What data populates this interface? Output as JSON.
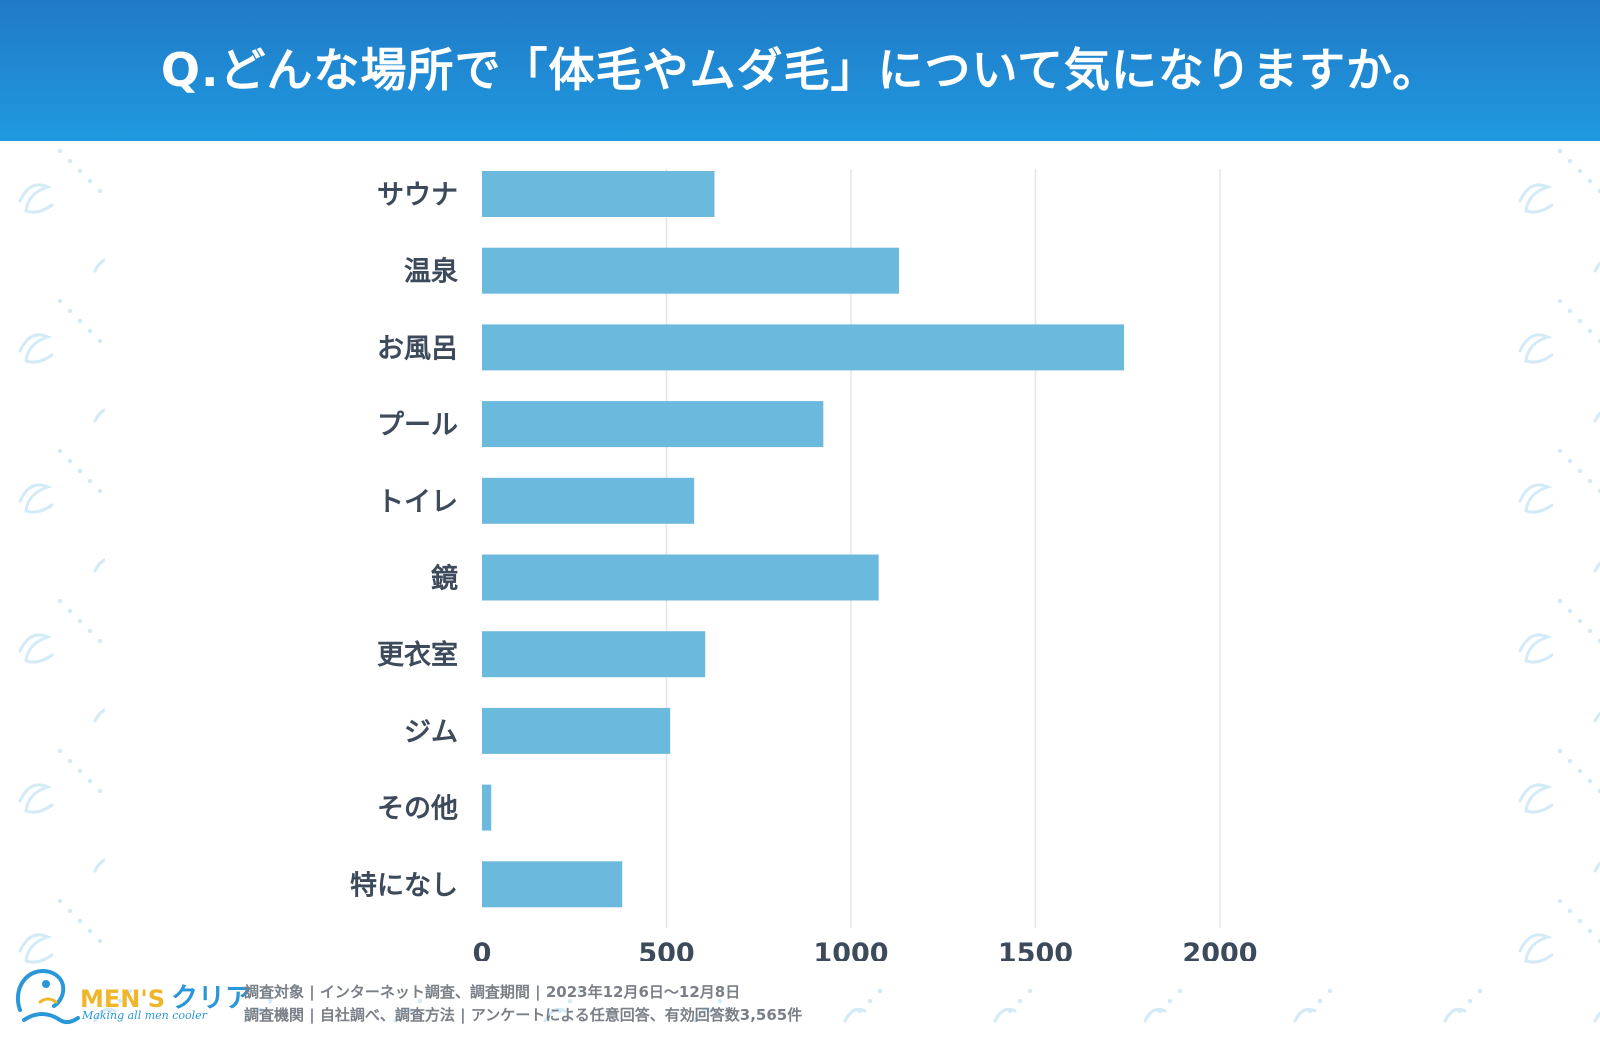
{
  "header": {
    "title": "Q.どんな場所で「体毛やムダ毛」について気になりますか。"
  },
  "chart_data": {
    "type": "bar",
    "orientation": "horizontal",
    "title": "Q.どんな場所で「体毛やムダ毛」について気になりますか。",
    "categories": [
      "サウナ",
      "温泉",
      "お風呂",
      "プール",
      "トイレ",
      "鏡",
      "更衣室",
      "ジム",
      "その他",
      "特になし"
    ],
    "values": [
      630,
      1130,
      1740,
      925,
      575,
      1075,
      605,
      510,
      25,
      380
    ],
    "xlim": [
      0,
      2000
    ],
    "x_ticks": [
      0,
      500,
      1000,
      1500,
      2000
    ],
    "x_tick_labels": [
      "0",
      "500",
      "1000",
      "1500",
      "2000"
    ],
    "xlabel": "",
    "ylabel": "",
    "grid": true,
    "bar_color": "#6cb9de",
    "grid_color": "#e3e5e8",
    "label_color": "#3d4a5c"
  },
  "footer": {
    "brand_latin": "MEN'S",
    "brand_kana": "クリア",
    "tagline": "Making all men cooler",
    "line1": "調査対象 | インターネット調査、調査期間 | 2023年12月6日〜12月8日",
    "line2": "調査機関 | 自社調べ、調査方法 | アンケートによる任意回答、有効回答数3,565件"
  },
  "colors": {
    "header_top": "#2079c6",
    "header_bottom": "#1f9ae0",
    "pattern": "#cfe8f6",
    "brand_yellow": "#f0b629",
    "brand_blue": "#2a97d8"
  }
}
